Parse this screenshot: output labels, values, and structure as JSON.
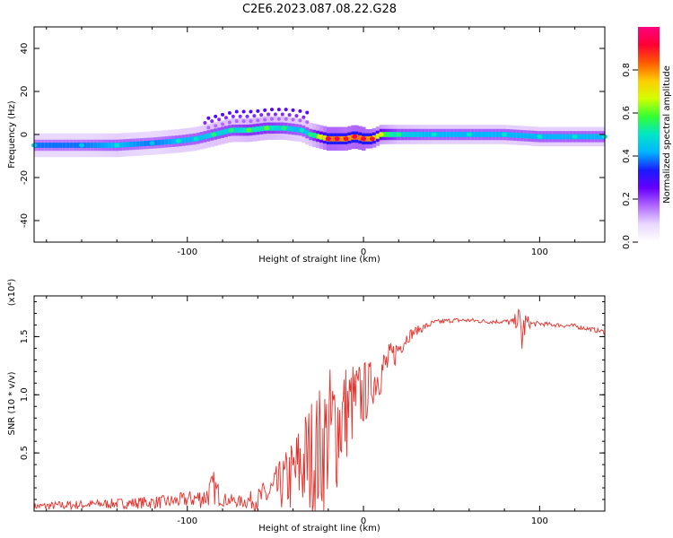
{
  "title": "C2E6.2023.087.08.22.G28",
  "colors": {
    "snr_line": "#e8302a",
    "colormap": [
      "#ffffff",
      "#e9d8ff",
      "#b26bff",
      "#6600ff",
      "#1a1aff",
      "#00b3ff",
      "#00e6c8",
      "#33ff33",
      "#d2ff00",
      "#ffcc00",
      "#ff5a00",
      "#ff0033",
      "#ff0080"
    ]
  },
  "chart_data": [
    {
      "type": "heatmap",
      "title": "C2E6.2023.087.08.22.G28",
      "xlabel": "Height of straight line (km)",
      "ylabel": "Frequency (Hz)",
      "xlim": [
        -187,
        137
      ],
      "ylim": [
        -50,
        50
      ],
      "xticks": [
        "-100",
        "0",
        "100"
      ],
      "xtick_values": [
        -100,
        0,
        100
      ],
      "yticks": [
        "-40",
        "-20",
        "0",
        "20",
        "40"
      ],
      "ytick_values": [
        -40,
        -20,
        0,
        20,
        40
      ],
      "colorbar": {
        "label": "Normalized spectral amplitude",
        "range": [
          0,
          1
        ],
        "ticks": [
          "0.0",
          "0.2",
          "0.4",
          "0.6",
          "0.8"
        ],
        "tick_values": [
          0.0,
          0.2,
          0.4,
          0.6,
          0.8
        ]
      },
      "ridge": {
        "height_km": [
          -187,
          -160,
          -140,
          -120,
          -105,
          -95,
          -85,
          -75,
          -65,
          -55,
          -45,
          -35,
          -30,
          -25,
          -20,
          -15,
          -10,
          -5,
          0,
          5,
          10,
          20,
          40,
          60,
          80,
          100,
          120,
          137
        ],
        "center_hz": [
          -5,
          -5,
          -5,
          -4,
          -3,
          -2,
          0,
          2,
          2,
          3,
          3,
          2,
          0,
          -1,
          -2,
          -2,
          -2,
          -1,
          -2,
          -2,
          0,
          0,
          0,
          0,
          0,
          -1,
          -1,
          -1
        ],
        "peak_amplitude": [
          0.45,
          0.45,
          0.5,
          0.45,
          0.5,
          0.5,
          0.55,
          0.55,
          0.6,
          0.6,
          0.55,
          0.5,
          0.55,
          0.7,
          0.95,
          0.95,
          0.9,
          0.95,
          0.95,
          0.9,
          0.7,
          0.55,
          0.5,
          0.5,
          0.5,
          0.5,
          0.5,
          0.5
        ]
      }
    },
    {
      "type": "line",
      "xlabel": "Height of straight line (km)",
      "ylabel": "SNR (10 * v/v)",
      "y_multiplier": "(x10⁴)",
      "xlim": [
        -187,
        137
      ],
      "ylim": [
        0,
        1.85
      ],
      "xticks": [
        "-100",
        "0",
        "100"
      ],
      "xtick_values": [
        -100,
        0,
        100
      ],
      "yticks": [
        "0.5",
        "1.0",
        "1.5"
      ],
      "ytick_values": [
        0.5,
        1.0,
        1.5
      ],
      "series": [
        {
          "x": [
            -187,
            -170,
            -150,
            -130,
            -110,
            -100,
            -90,
            -85,
            -80,
            -70,
            -60,
            -50,
            -45,
            -40,
            -35,
            -30,
            -25,
            -20,
            -15,
            -10,
            -5,
            0,
            5,
            10,
            15,
            20,
            25,
            30,
            40,
            50,
            60,
            70,
            80,
            85,
            88,
            90,
            92,
            95,
            100,
            110,
            120,
            130,
            137
          ],
          "y": [
            0.04,
            0.05,
            0.06,
            0.07,
            0.08,
            0.1,
            0.12,
            0.2,
            0.1,
            0.08,
            0.1,
            0.18,
            0.25,
            0.3,
            0.4,
            0.45,
            0.5,
            0.65,
            0.75,
            0.85,
            0.95,
            1.0,
            1.1,
            1.2,
            1.3,
            1.4,
            1.5,
            1.55,
            1.62,
            1.64,
            1.64,
            1.63,
            1.63,
            1.62,
            1.66,
            1.5,
            1.62,
            1.61,
            1.61,
            1.6,
            1.59,
            1.56,
            1.54
          ],
          "noise": [
            0.03,
            0.04,
            0.04,
            0.05,
            0.06,
            0.07,
            0.1,
            0.15,
            0.06,
            0.05,
            0.1,
            0.2,
            0.25,
            0.35,
            0.45,
            0.55,
            0.6,
            0.6,
            0.6,
            0.45,
            0.35,
            0.3,
            0.2,
            0.2,
            0.15,
            0.1,
            0.06,
            0.04,
            0.025,
            0.02,
            0.02,
            0.02,
            0.02,
            0.04,
            0.1,
            0.2,
            0.1,
            0.03,
            0.02,
            0.02,
            0.02,
            0.02,
            0.02
          ]
        }
      ]
    }
  ]
}
